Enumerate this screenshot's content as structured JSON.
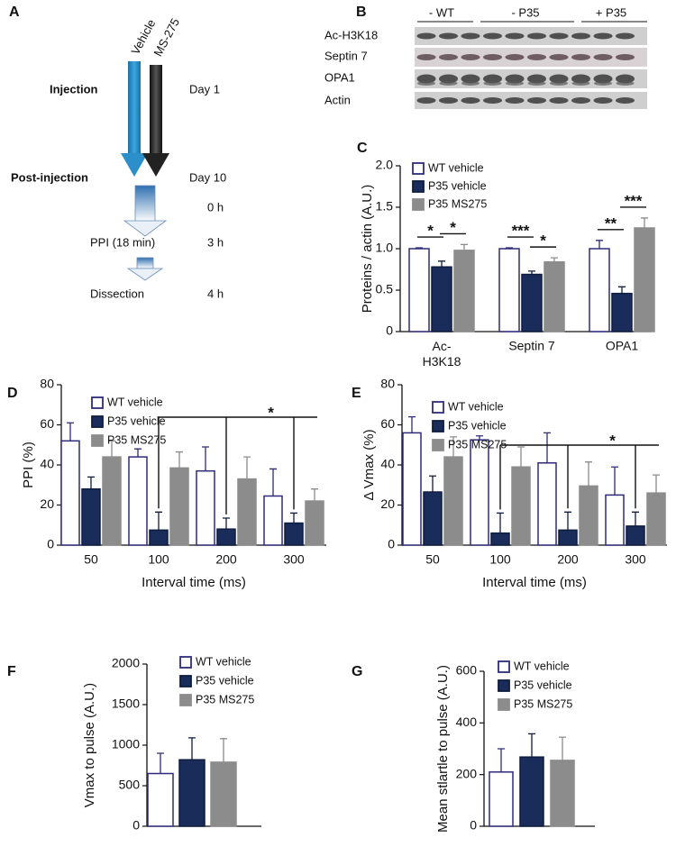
{
  "diagram": {
    "label": "A",
    "groups": [
      "Vehicle",
      "MS-275"
    ],
    "events": [
      {
        "name": "Injection",
        "time": "Day 1"
      },
      {
        "name": "Post-injection",
        "time": "Day 10"
      },
      {
        "time": "0 h"
      },
      {
        "name": "PPI (18 min)",
        "time": "3 h"
      },
      {
        "name": "Dissection",
        "time": "4 h"
      }
    ]
  },
  "blot": {
    "label": "B",
    "groups": [
      "- WT",
      "- P35",
      "+ P35"
    ],
    "proteins": [
      "Ac-H3K18",
      "Septin 7",
      "OPA1",
      "Actin"
    ]
  },
  "chart_data": [
    {
      "type": "bar",
      "panel_label": "C",
      "ylabel": "Proteins / actin (A.U.)",
      "categories": [
        "Ac-\nH3K18",
        "Septin 7",
        "OPA1"
      ],
      "series": [
        {
          "name": "WT vehicle",
          "color": "#ffffff",
          "edgecolor": "#2e2b7a",
          "values": [
            1.0,
            1.0,
            1.0
          ],
          "errors": [
            0.01,
            0.01,
            0.1
          ]
        },
        {
          "name": "P35 vehicle",
          "color": "#1a2d5a",
          "edgecolor": "#0f1c3e",
          "values": [
            0.78,
            0.69,
            0.46
          ],
          "errors": [
            0.07,
            0.04,
            0.08
          ]
        },
        {
          "name": "P35 MS275",
          "color": "#8c8c8c",
          "edgecolor": "#8c8c8c",
          "values": [
            0.98,
            0.84,
            1.25
          ],
          "errors": [
            0.07,
            0.05,
            0.12
          ]
        }
      ],
      "significance": [
        [
          "*",
          "*"
        ],
        [
          "***",
          "*"
        ],
        [
          "**",
          "***"
        ]
      ],
      "ylim": [
        0,
        2
      ],
      "yticks": [
        0,
        0.5,
        {
          "value": 1,
          "label": "1.0"
        },
        1.5,
        {
          "value": 2,
          "label": "2.0"
        }
      ]
    },
    {
      "type": "bar",
      "panel_label": "D",
      "ylabel": "PPI (%)",
      "xlabel": "Interval time (ms)",
      "categories": [
        "50",
        "100",
        "200",
        "300"
      ],
      "series": [
        {
          "name": "WT vehicle",
          "color": "#ffffff",
          "edgecolor": "#2e2b7a",
          "values": [
            52,
            44,
            37,
            24.5
          ],
          "errors": [
            9,
            4,
            12,
            13.5
          ]
        },
        {
          "name": "P35 vehicle",
          "color": "#1a2d5a",
          "edgecolor": "#0f1c3e",
          "values": [
            28,
            7.5,
            8,
            11
          ],
          "errors": [
            6,
            9,
            5.5,
            5
          ]
        },
        {
          "name": "P35 MS275",
          "color": "#8c8c8c",
          "edgecolor": "#8c8c8c",
          "values": [
            44,
            38.5,
            33,
            22
          ],
          "errors": [
            8,
            8,
            11,
            6
          ]
        }
      ],
      "bracket_label": "*",
      "ylim": [
        0,
        80
      ],
      "yticks": [
        0,
        20,
        40,
        60,
        80
      ]
    },
    {
      "type": "bar",
      "panel_label": "E",
      "ylabel": "Δ Vmax (%)",
      "xlabel": "Interval time (ms)",
      "categories": [
        "50",
        "100",
        "200",
        "300"
      ],
      "series": [
        {
          "name": "WT vehicle",
          "color": "#ffffff",
          "edgecolor": "#2e2b7a",
          "values": [
            56,
            52.5,
            41,
            25
          ],
          "errors": [
            8,
            2,
            15,
            14
          ]
        },
        {
          "name": "P35 vehicle",
          "color": "#1a2d5a",
          "edgecolor": "#0f1c3e",
          "values": [
            26.5,
            6,
            7.5,
            9.5
          ],
          "errors": [
            8,
            10,
            9,
            7
          ]
        },
        {
          "name": "P35 MS275",
          "color": "#8c8c8c",
          "edgecolor": "#8c8c8c",
          "values": [
            44,
            39,
            29.5,
            26
          ],
          "errors": [
            10,
            10,
            12,
            9
          ]
        }
      ],
      "bracket_label": "*",
      "ylim": [
        0,
        80
      ],
      "yticks": [
        0,
        20,
        40,
        60,
        80
      ]
    },
    {
      "type": "bar",
      "panel_label": "F",
      "ylabel": "Vmax to pulse (A.U.)",
      "categories": [
        null
      ],
      "series": [
        {
          "name": "WT vehicle",
          "color": "#ffffff",
          "edgecolor": "#2e2b7a",
          "values": [
            650
          ],
          "errors": [
            250
          ]
        },
        {
          "name": "P35 vehicle",
          "color": "#1a2d5a",
          "edgecolor": "#0f1c3e",
          "values": [
            820
          ],
          "errors": [
            270
          ]
        },
        {
          "name": "P35 MS275",
          "color": "#8c8c8c",
          "edgecolor": "#8c8c8c",
          "values": [
            790
          ],
          "errors": [
            290
          ]
        }
      ],
      "ylim": [
        0,
        2000
      ],
      "yticks": [
        0,
        500,
        1000,
        1500,
        2000
      ]
    },
    {
      "type": "bar",
      "panel_label": "G",
      "ylabel": "Mean stlartle to pulse (A.U.)",
      "categories": [
        null
      ],
      "series": [
        {
          "name": "WT vehicle",
          "color": "#ffffff",
          "edgecolor": "#2e2b7a",
          "values": [
            210
          ],
          "errors": [
            90
          ]
        },
        {
          "name": "P35 vehicle",
          "color": "#1a2d5a",
          "edgecolor": "#0f1c3e",
          "values": [
            268
          ],
          "errors": [
            90
          ]
        },
        {
          "name": "P35 MS275",
          "color": "#8c8c8c",
          "edgecolor": "#8c8c8c",
          "values": [
            255
          ],
          "errors": [
            90
          ]
        }
      ],
      "ylim": [
        0,
        600
      ],
      "yticks": [
        0,
        200,
        400,
        600
      ]
    }
  ]
}
